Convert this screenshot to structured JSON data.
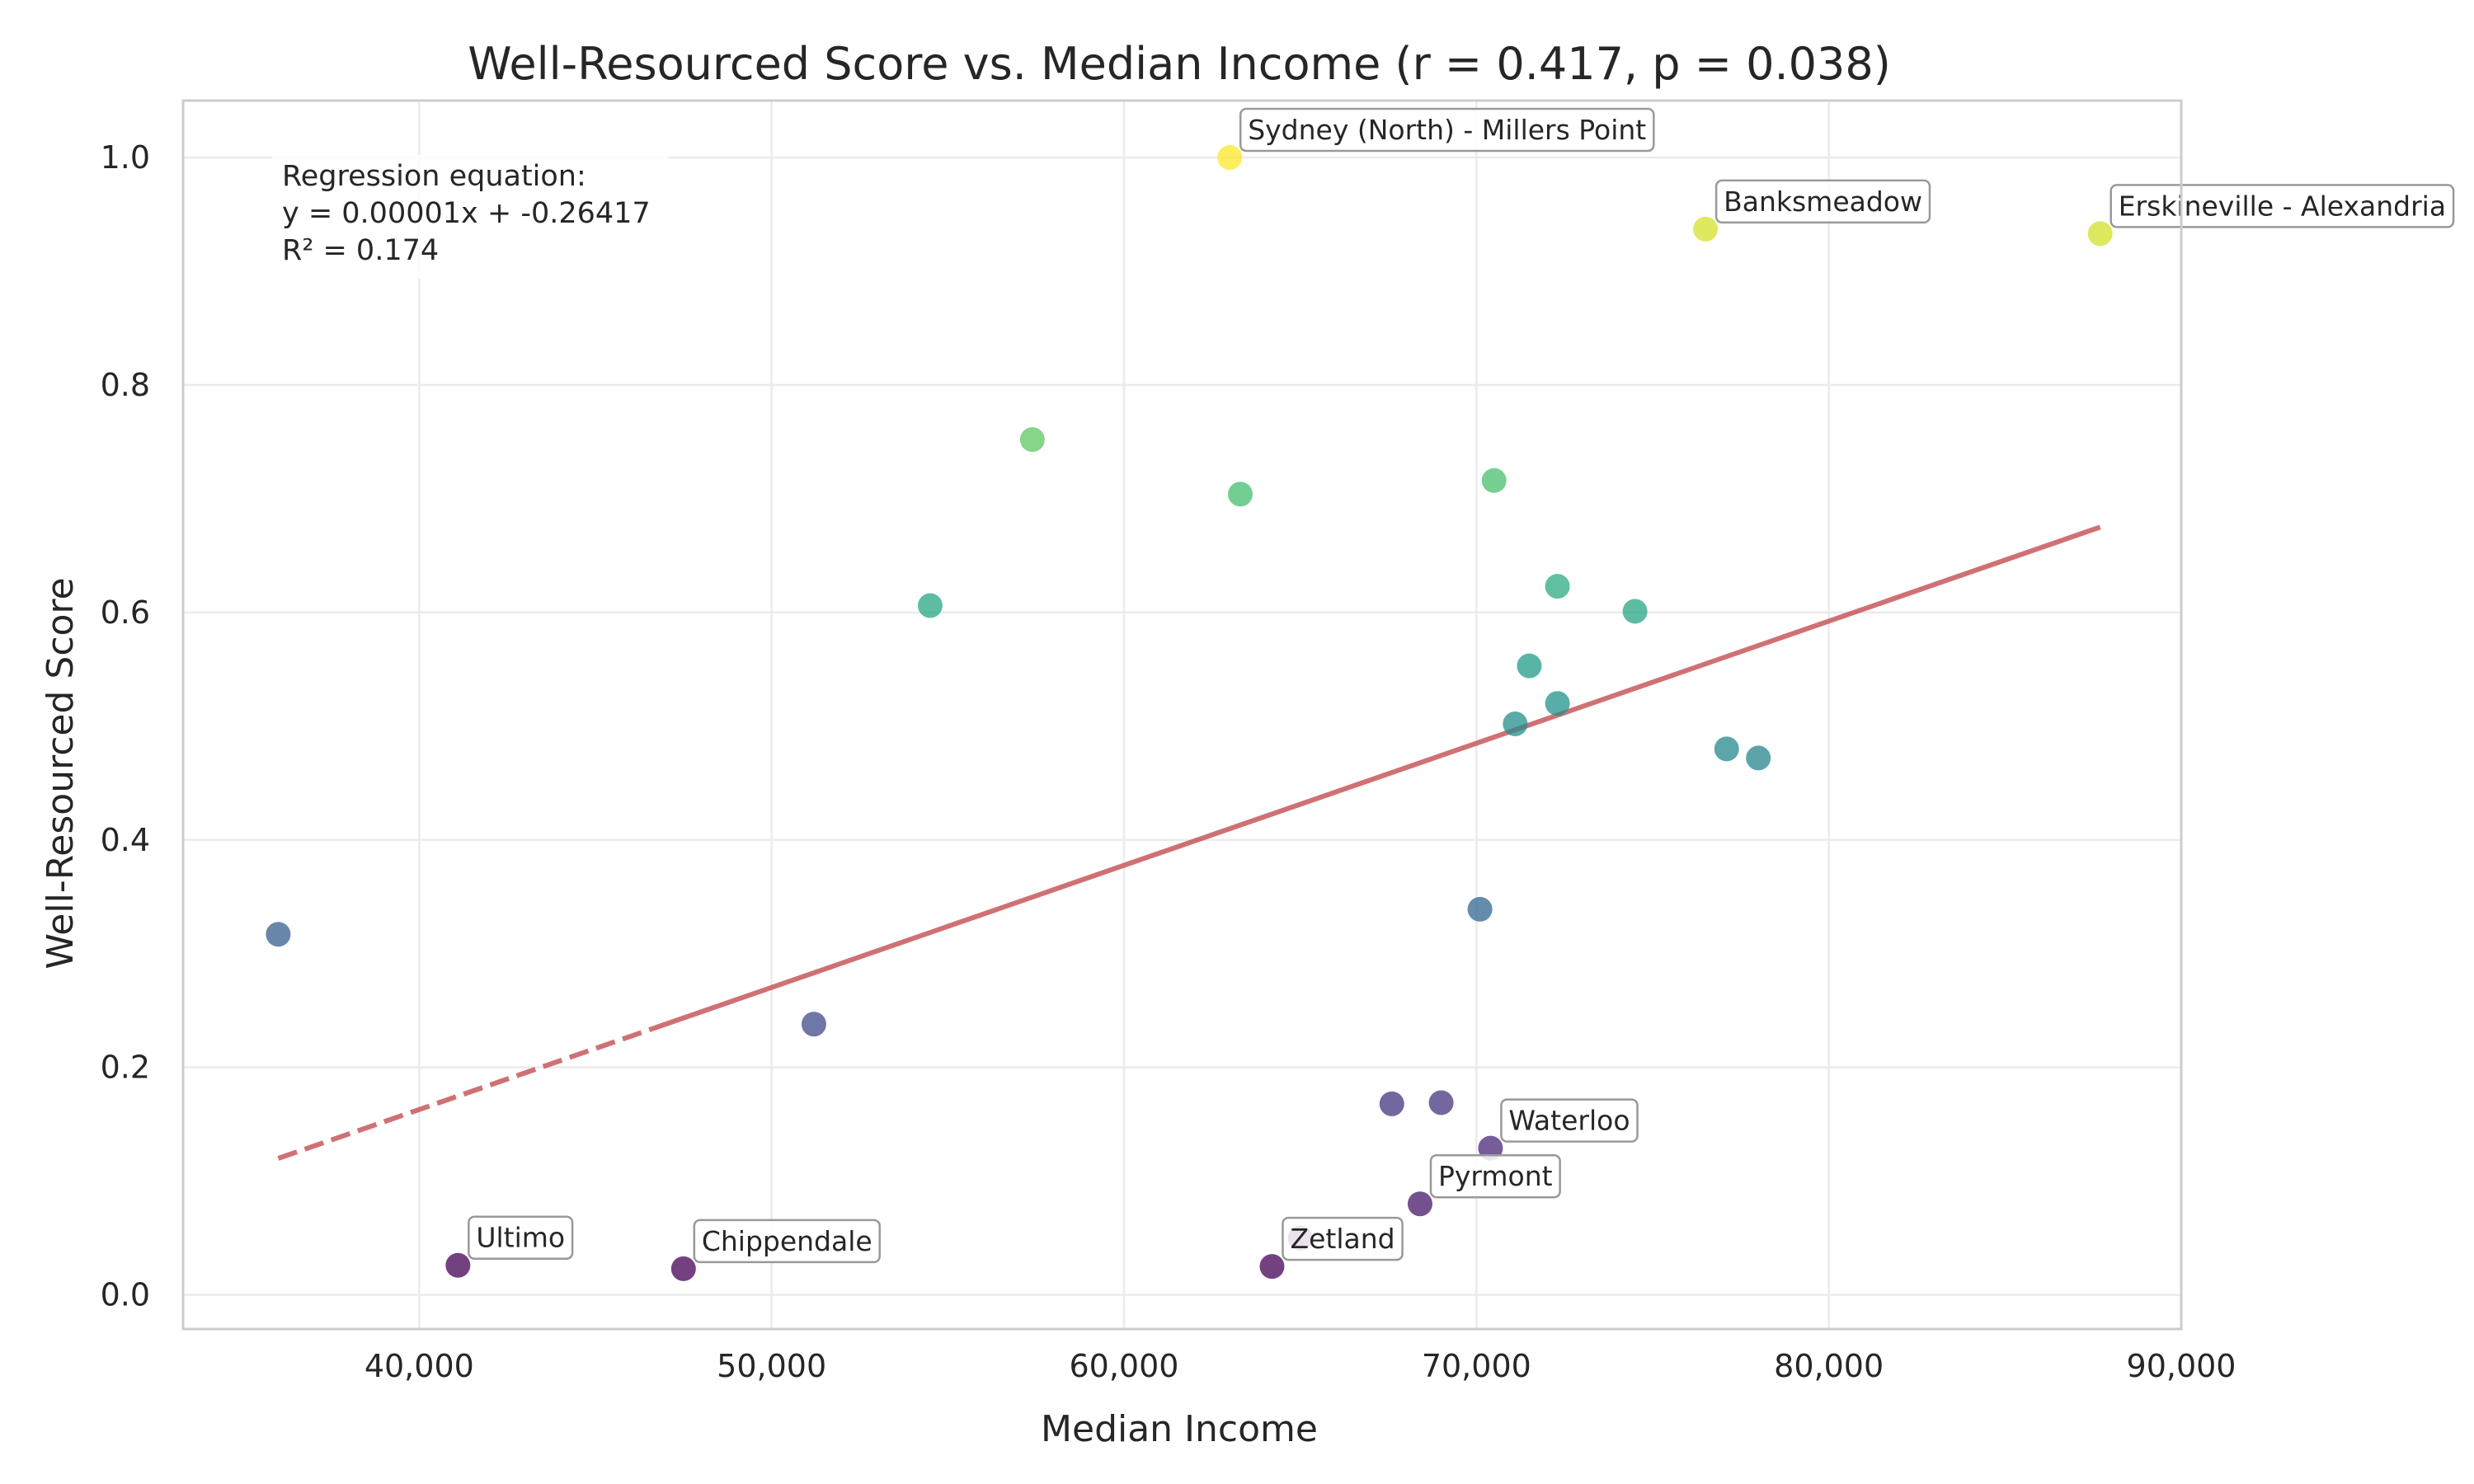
{
  "chart_data": {
    "type": "scatter",
    "title": "Well-Resourced Score vs. Median Income (r = 0.417, p = 0.038)",
    "xlabel": "Median Income",
    "ylabel": "Well-Resourced Score",
    "xlim": [
      33300,
      90000
    ],
    "ylim": [
      -0.03,
      1.05
    ],
    "xticks": [
      40000,
      50000,
      60000,
      70000,
      80000,
      90000
    ],
    "xtick_labels": [
      "40,000",
      "50,000",
      "60,000",
      "70,000",
      "80,000",
      "90,000"
    ],
    "yticks": [
      0.0,
      0.2,
      0.4,
      0.6,
      0.8,
      1.0
    ],
    "ytick_labels": [
      "0.0",
      "0.2",
      "0.4",
      "0.6",
      "0.8",
      "1.0"
    ],
    "grid": true,
    "colormap": "viridis",
    "points": [
      {
        "x": 36000,
        "y": 0.317,
        "label": ""
      },
      {
        "x": 41100,
        "y": 0.026,
        "label": "Ultimo"
      },
      {
        "x": 47500,
        "y": 0.023,
        "label": "Chippendale"
      },
      {
        "x": 51200,
        "y": 0.238,
        "label": ""
      },
      {
        "x": 54500,
        "y": 0.606,
        "label": ""
      },
      {
        "x": 57400,
        "y": 0.752,
        "label": ""
      },
      {
        "x": 63000,
        "y": 1.0,
        "label": "Sydney (North) - Millers Point"
      },
      {
        "x": 63300,
        "y": 0.704,
        "label": ""
      },
      {
        "x": 64200,
        "y": 0.025,
        "label": "Zetland"
      },
      {
        "x": 65000,
        "y": 0.05,
        "label": ""
      },
      {
        "x": 67600,
        "y": 0.168,
        "label": ""
      },
      {
        "x": 68400,
        "y": 0.08,
        "label": "Pyrmont"
      },
      {
        "x": 69000,
        "y": 0.169,
        "label": ""
      },
      {
        "x": 70100,
        "y": 0.339,
        "label": ""
      },
      {
        "x": 70400,
        "y": 0.129,
        "label": "Waterloo"
      },
      {
        "x": 70500,
        "y": 0.716,
        "label": ""
      },
      {
        "x": 71100,
        "y": 0.502,
        "label": ""
      },
      {
        "x": 71500,
        "y": 0.553,
        "label": ""
      },
      {
        "x": 72300,
        "y": 0.52,
        "label": ""
      },
      {
        "x": 72300,
        "y": 0.623,
        "label": ""
      },
      {
        "x": 74500,
        "y": 0.601,
        "label": ""
      },
      {
        "x": 76500,
        "y": 0.937,
        "label": "Banksmeadow"
      },
      {
        "x": 77100,
        "y": 0.48,
        "label": ""
      },
      {
        "x": 78000,
        "y": 0.472,
        "label": ""
      },
      {
        "x": 87700,
        "y": 0.933,
        "label": "Erskineville - Alexandria"
      }
    ],
    "regression": {
      "x_range": [
        36000,
        87700
      ],
      "y_range": [
        0.12,
        0.675
      ],
      "dashed_until_x": 47000,
      "color": "#c44e52"
    },
    "annotation_box": {
      "lines": [
        "Regression equation:",
        "y = 0.00001x + -0.26417",
        "R² = 0.174"
      ]
    },
    "colors": {
      "grid": "#ebebeb",
      "spine": "#cccccc",
      "text": "#262626"
    }
  }
}
